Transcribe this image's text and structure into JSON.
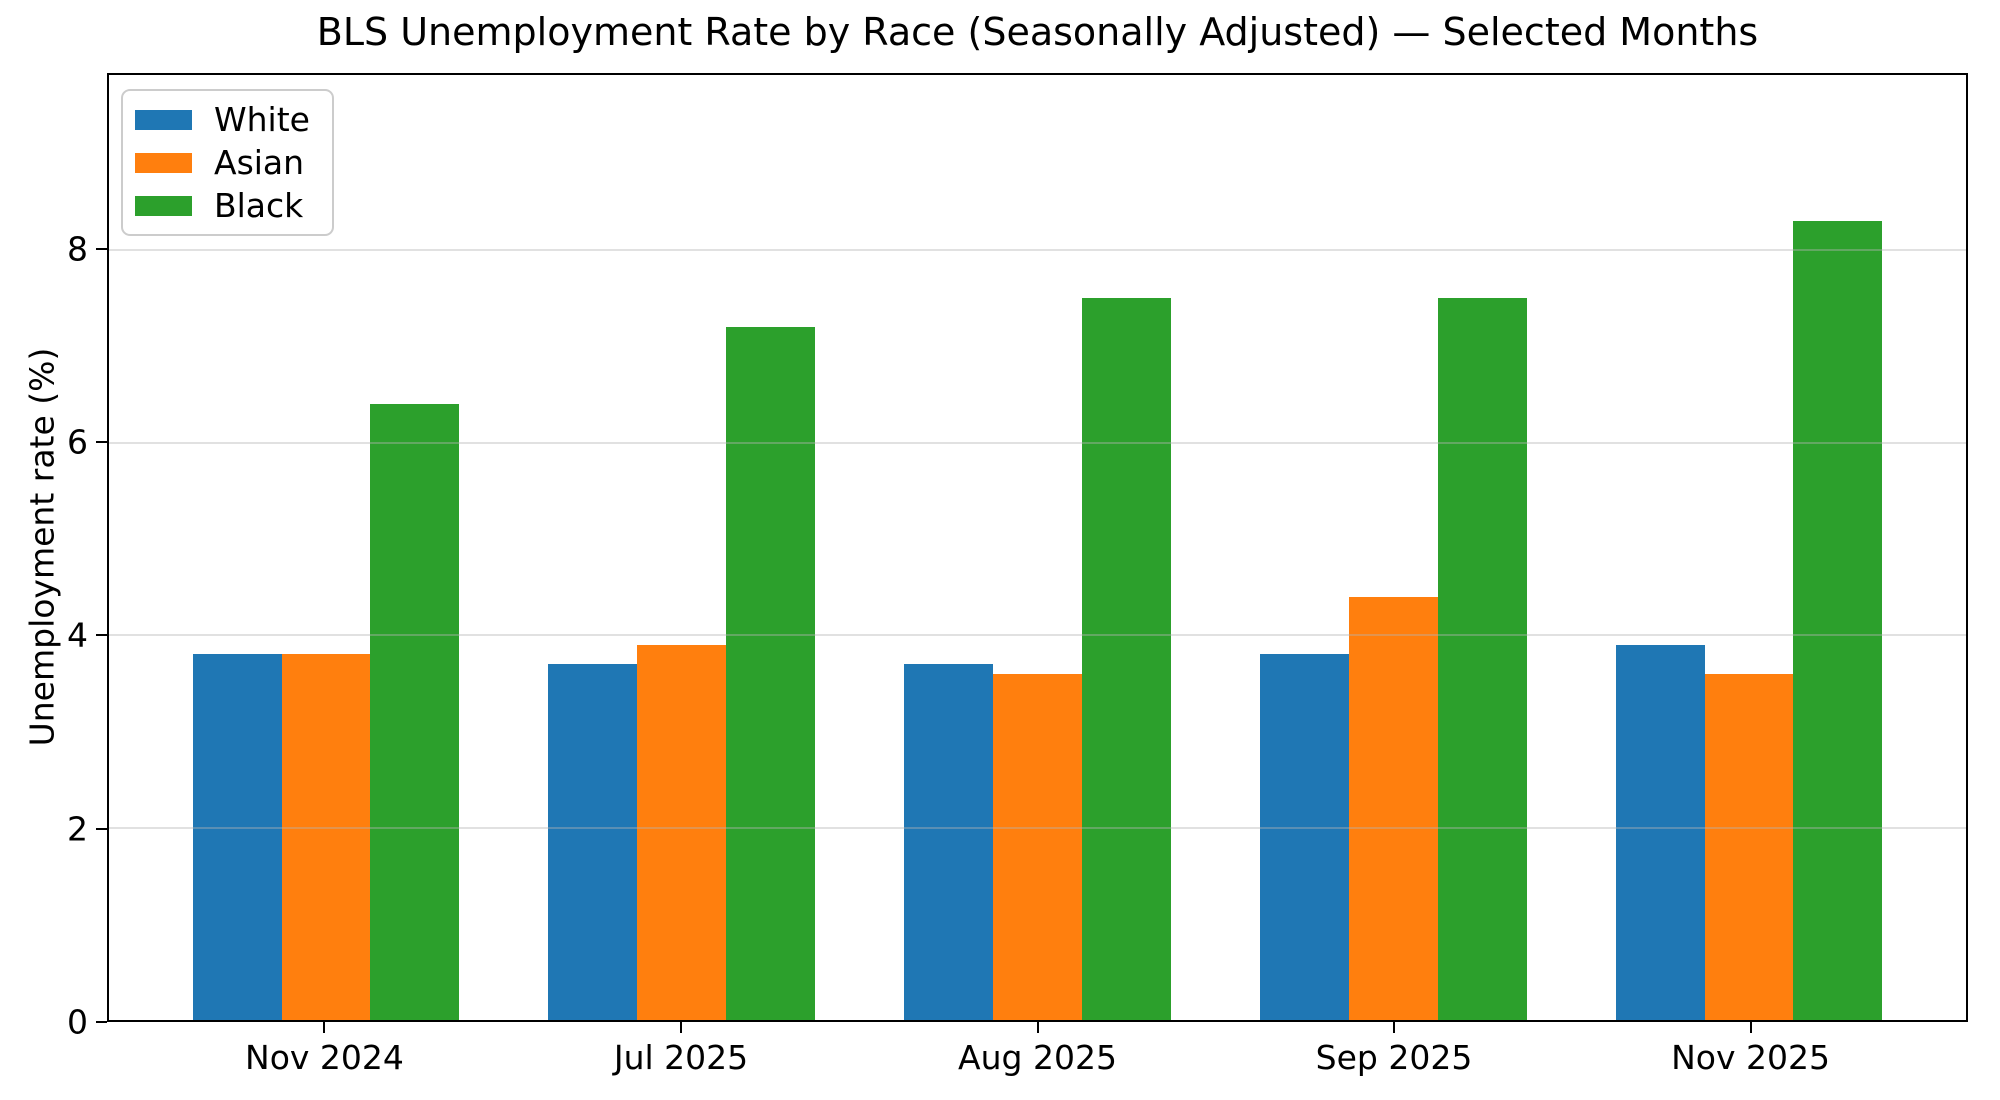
{
  "chart_data": {
    "type": "bar",
    "title": "BLS Unemployment Rate by Race (Seasonally Adjusted) — Selected Months",
    "xlabel": "",
    "ylabel": "Unemployment rate (%)",
    "categories": [
      "Nov 2024",
      "Jul 2025",
      "Aug 2025",
      "Sep 2025",
      "Nov 2025"
    ],
    "series": [
      {
        "name": "White",
        "color": "#1f77b4",
        "values": [
          3.8,
          3.7,
          3.7,
          3.8,
          3.9
        ]
      },
      {
        "name": "Asian",
        "color": "#ff7f0e",
        "values": [
          3.8,
          3.9,
          3.6,
          4.4,
          3.6
        ]
      },
      {
        "name": "Black",
        "color": "#2ca02c",
        "values": [
          6.4,
          7.2,
          7.5,
          7.5,
          8.3
        ]
      }
    ],
    "yticks": [
      0,
      2,
      4,
      6,
      8
    ],
    "ylim": [
      0,
      9.82
    ],
    "xlim": [
      -0.61,
      4.61
    ],
    "bar_width_units": 0.25,
    "grid": true,
    "legend_position": "top-left",
    "legend_labels": [
      "White",
      "Asian",
      "Black"
    ]
  }
}
